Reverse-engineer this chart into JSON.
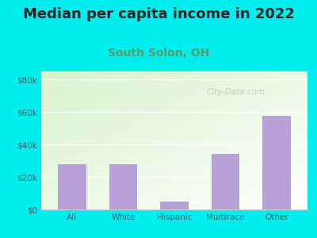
{
  "title": "Median per capita income in 2022",
  "subtitle": "South Solon, OH",
  "categories": [
    "All",
    "White",
    "Hispanic",
    "Multirace",
    "Other"
  ],
  "values": [
    28000,
    28000,
    5000,
    34000,
    57500
  ],
  "bar_color": "#b8a0d8",
  "title_fontsize": 13,
  "subtitle_fontsize": 10,
  "title_color": "#222222",
  "subtitle_color": "#5a9a6a",
  "background_outer": "#00eeee",
  "ylim": [
    0,
    85000
  ],
  "yticks": [
    0,
    20000,
    40000,
    60000,
    80000
  ],
  "ytick_labels": [
    "$0",
    "$20k",
    "$40k",
    "$60k",
    "$80k"
  ],
  "watermark": "City-Data.com",
  "grid_color": "#dddddd"
}
